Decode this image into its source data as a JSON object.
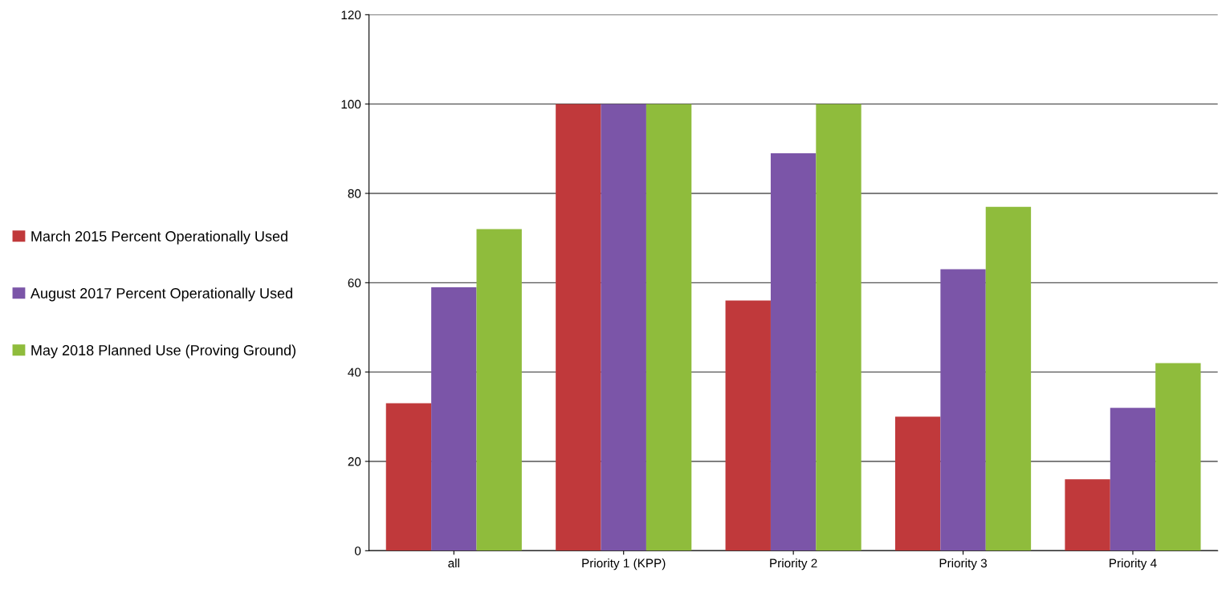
{
  "chart_data": {
    "type": "bar",
    "categories": [
      "all",
      "Priority 1 (KPP)",
      "Priority 2",
      "Priority 3",
      "Priority 4"
    ],
    "series": [
      {
        "name": "March 2015 Percent Operationally Used",
        "color": "#c0393b",
        "values": [
          33,
          100,
          56,
          30,
          16
        ]
      },
      {
        "name": "August 2017 Percent Operationally Used",
        "color": "#7b55a8",
        "values": [
          59,
          100,
          89,
          63,
          32
        ]
      },
      {
        "name": "May 2018 Planned Use (Proving Ground)",
        "color": "#8fbc3c",
        "values": [
          72,
          100,
          100,
          77,
          42
        ]
      }
    ],
    "ylim": [
      0,
      120
    ],
    "yticks": [
      0,
      20,
      40,
      60,
      80,
      100,
      120
    ],
    "grid": "y",
    "legend": "left"
  }
}
